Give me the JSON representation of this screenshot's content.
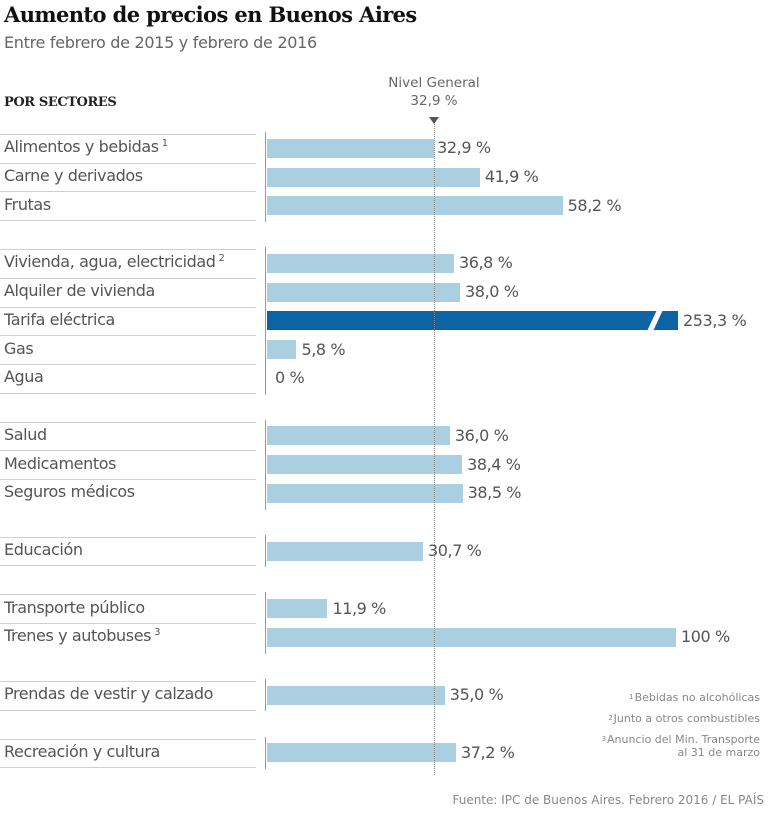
{
  "chart_data": {
    "type": "bar",
    "orientation": "horizontal",
    "title": "Aumento de precios en Buenos Aires",
    "subtitle": "Entre febrero de 2015 y febrero de 2016",
    "section_label": "POR SECTORES",
    "reference": {
      "label": "Nivel General",
      "value": 32.9,
      "value_label": "32,9 %"
    },
    "unit": "%",
    "xlim": [
      0,
      60
    ],
    "groups": [
      {
        "rows": [
          {
            "label": "Alimentos y bebidas",
            "note": "1",
            "value": 32.9,
            "value_label": "32,9 %",
            "highlight": false,
            "separator_below": false
          },
          {
            "label": "Carne y derivados",
            "value": 41.9,
            "value_label": "41,9 %",
            "highlight": false,
            "separator_below": false
          },
          {
            "label": "Frutas",
            "value": 58.2,
            "value_label": "58,2 %",
            "highlight": false,
            "separator_below": true
          }
        ]
      },
      {
        "rows": [
          {
            "label": "Vivienda, agua, electricidad",
            "note": "2",
            "value": 36.8,
            "value_label": "36,8 %",
            "highlight": false
          },
          {
            "label": "Alquiler de vivienda",
            "value": 38.0,
            "value_label": "38,0 %",
            "highlight": false
          },
          {
            "label": "Tarifa eléctrica",
            "value": 253.3,
            "value_label": "253,3 %",
            "highlight": true,
            "truncated": true
          },
          {
            "label": "Gas",
            "value": 5.8,
            "value_label": "5,8 %",
            "highlight": false
          },
          {
            "label": "Agua",
            "value": 0,
            "value_label": "0 %",
            "highlight": false,
            "separator_below": true
          }
        ]
      },
      {
        "rows": [
          {
            "label": "Salud",
            "value": 36.0,
            "value_label": "36,0 %",
            "highlight": false
          },
          {
            "label": "Medicamentos",
            "value": 38.4,
            "value_label": "38,4 %",
            "highlight": false
          },
          {
            "label": "Seguros médicos",
            "value": 38.5,
            "value_label": "38,5 %",
            "highlight": false
          }
        ]
      },
      {
        "rows": [
          {
            "label": "Educación",
            "value": 30.7,
            "value_label": "30,7 %",
            "highlight": false,
            "separator_below": true
          }
        ]
      },
      {
        "rows": [
          {
            "label": "Transporte público",
            "value": 11.9,
            "value_label": "11,9 %",
            "highlight": false
          },
          {
            "label": "Trenes y autobuses",
            "note": "3",
            "value": 100,
            "value_label": "100 %",
            "highlight": false,
            "truncated": true
          }
        ]
      },
      {
        "rows": [
          {
            "label": "Prendas de vestir y calzado",
            "value": 35.0,
            "value_label": "35,0 %",
            "highlight": false,
            "separator_below": true
          }
        ]
      },
      {
        "rows": [
          {
            "label": "Recreación y cultura",
            "value": 37.2,
            "value_label": "37,2 %",
            "highlight": false,
            "separator_below": true
          }
        ]
      }
    ],
    "colors": {
      "bar": "#a9cfe0",
      "highlight": "#0b64a3",
      "reference_line": "#8a8a8a"
    },
    "notes": [
      {
        "mark": "1",
        "text": "Bebidas no alcohólicas"
      },
      {
        "mark": "2",
        "text": "Junto a otros combustibles"
      },
      {
        "mark": "3",
        "text": "Anuncio del Min. Transporte",
        "text2": "al 31 de marzo"
      }
    ],
    "source": "Fuente: IPC de Buenos Aires. Febrero 2016 / EL PAÍS"
  }
}
